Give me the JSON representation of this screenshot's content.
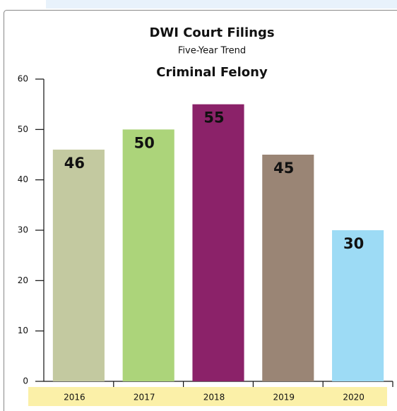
{
  "chart_data": {
    "type": "bar",
    "title": "DWI Court Filings",
    "subtitle": "Five-Year Trend",
    "chart_subtitle": "Criminal Felony",
    "categories": [
      "2016",
      "2017",
      "2018",
      "2019",
      "2020"
    ],
    "values": [
      46,
      50,
      55,
      45,
      30
    ],
    "colors": [
      "#c3c9a0",
      "#acd47a",
      "#8b2269",
      "#9a8575",
      "#9ddbf5"
    ],
    "ylim": [
      0,
      60
    ],
    "yticks": [
      0,
      10,
      20,
      30,
      40,
      50,
      60
    ]
  }
}
